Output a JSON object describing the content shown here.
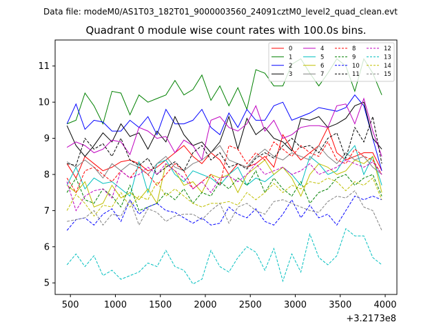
{
  "figure": {
    "suptitle": "Data file: modeM0/AS1T03_182T01_9000003560_24091cztM0_level2_quad_clean.evt"
  },
  "chart_data": {
    "type": "line",
    "title": "Quadrant 0 module wise count rates with 100.0s bins.",
    "xlabel": "",
    "ylabel": "",
    "x_offset_label": "+3.2173e8",
    "xlim": [
      330,
      4130
    ],
    "ylim": [
      4.68,
      11.72
    ],
    "xticks": [
      500,
      1000,
      1500,
      2000,
      2500,
      3000,
      3500,
      4000
    ],
    "yticks": [
      5,
      6,
      7,
      8,
      9,
      10,
      11
    ],
    "grid": false,
    "legend_placement": "top-right",
    "x": [
      462,
      562,
      662,
      762,
      862,
      962,
      1062,
      1162,
      1262,
      1362,
      1462,
      1562,
      1662,
      1762,
      1862,
      1962,
      2062,
      2162,
      2262,
      2362,
      2462,
      2562,
      2662,
      2762,
      2862,
      2962,
      3062,
      3162,
      3262,
      3362,
      3462,
      3562,
      3662,
      3762,
      3862,
      3962
    ],
    "series": [
      {
        "name": "0",
        "color": "#ff0000",
        "dash": "solid",
        "values": [
          8.3,
          7.9,
          8.5,
          8.3,
          8.1,
          8.2,
          8.35,
          8.4,
          8.3,
          8.1,
          8.2,
          8.4,
          8.6,
          8.8,
          8.5,
          8.3,
          8.6,
          8.4,
          8.0,
          8.3,
          8.2,
          8.3,
          8.5,
          8.2,
          9.1,
          8.7,
          8.4,
          8.6,
          8.8,
          9.3,
          8.6,
          8.4,
          8.5,
          8.6,
          8.6,
          8.1
        ]
      },
      {
        "name": "1",
        "color": "#008000",
        "dash": "solid",
        "values": [
          9.4,
          9.5,
          10.25,
          9.9,
          9.4,
          10.3,
          10.25,
          9.65,
          10.2,
          10.0,
          10.1,
          10.2,
          10.6,
          10.2,
          10.35,
          10.75,
          10.05,
          10.45,
          9.9,
          10.4,
          9.8,
          10.9,
          10.8,
          10.45,
          10.45,
          11.05,
          11.2,
          10.8,
          10.45,
          10.8,
          11.2,
          11.0,
          10.3,
          11.2,
          10.8,
          10.2
        ]
      },
      {
        "name": "2",
        "color": "#0000ff",
        "dash": "solid",
        "values": [
          9.4,
          9.95,
          9.25,
          9.5,
          9.45,
          9.2,
          9.2,
          9.5,
          9.3,
          9.6,
          9.1,
          9.8,
          9.4,
          9.4,
          9.5,
          9.8,
          9.3,
          9.1,
          9.7,
          9.3,
          9.8,
          9.5,
          9.5,
          9.9,
          10.0,
          9.5,
          9.6,
          9.7,
          9.85,
          9.8,
          9.75,
          9.85,
          10.2,
          9.9,
          9.0,
          8.1
        ]
      },
      {
        "name": "3",
        "color": "#000000",
        "dash": "solid",
        "values": [
          9.35,
          8.8,
          8.5,
          8.8,
          9.15,
          8.9,
          9.4,
          9.05,
          9.15,
          8.7,
          9.2,
          8.9,
          9.6,
          9.1,
          8.8,
          8.9,
          8.6,
          8.9,
          9.6,
          8.7,
          9.55,
          9.1,
          9.3,
          9.0,
          8.9,
          8.65,
          9.55,
          9.5,
          9.6,
          9.3,
          9.4,
          9.55,
          9.9,
          10.0,
          9.0,
          8.7
        ]
      },
      {
        "name": "4",
        "color": "#bf00bf",
        "dash": "solid",
        "values": [
          8.75,
          8.9,
          8.8,
          8.6,
          8.7,
          8.95,
          8.9,
          8.55,
          9.3,
          9.2,
          9.0,
          9.05,
          8.6,
          8.95,
          8.8,
          8.4,
          9.5,
          9.6,
          9.3,
          9.2,
          9.4,
          9.9,
          9.2,
          9.5,
          9.0,
          9.1,
          9.3,
          9.35,
          9.35,
          9.3,
          9.9,
          9.95,
          9.4,
          10.1,
          9.2,
          8.5
        ]
      },
      {
        "name": "5",
        "color": "#00bfbf",
        "dash": "solid",
        "values": [
          7.7,
          8.2,
          7.6,
          7.9,
          7.75,
          7.8,
          7.6,
          7.4,
          8.35,
          7.5,
          8.3,
          8.4,
          8.0,
          7.8,
          8.1,
          8.0,
          7.9,
          7.7,
          8.0,
          8.2,
          7.7,
          7.9,
          7.8,
          8.0,
          8.2,
          8.0,
          7.7,
          8.5,
          8.3,
          8.0,
          8.1,
          8.5,
          8.8,
          8.0,
          8.5,
          7.7
        ]
      },
      {
        "name": "6",
        "color": "#bfbf00",
        "dash": "solid",
        "values": [
          7.7,
          7.5,
          7.8,
          7.1,
          7.2,
          7.7,
          7.35,
          7.5,
          7.3,
          7.6,
          7.2,
          8.3,
          8.1,
          7.7,
          7.8,
          7.5,
          8.0,
          7.9,
          8.0,
          7.5,
          8.0,
          8.2,
          8.4,
          8.0,
          8.2,
          7.9,
          7.4,
          8.0,
          8.3,
          8.2,
          8.0,
          8.1,
          8.4,
          8.3,
          8.5,
          7.5
        ]
      },
      {
        "name": "7",
        "color": "#808080",
        "dash": "solid",
        "values": [
          8.35,
          8.2,
          8.4,
          8.2,
          7.9,
          8.3,
          8.1,
          8.3,
          8.2,
          8.0,
          8.3,
          8.5,
          8.2,
          8.1,
          8.3,
          8.4,
          8.6,
          8.8,
          8.4,
          8.3,
          8.2,
          8.5,
          8.7,
          8.5,
          8.4,
          8.6,
          8.5,
          8.4,
          8.8,
          8.5,
          8.3,
          8.6,
          8.4,
          8.5,
          8.2,
          8.0
        ]
      },
      {
        "name": "8",
        "color": "#ff0000",
        "dash": "dashed",
        "values": [
          7.9,
          7.5,
          8.1,
          8.2,
          8.0,
          7.8,
          8.1,
          7.9,
          8.2,
          8.0,
          7.7,
          8.0,
          8.3,
          8.1,
          7.6,
          7.8,
          8.0,
          7.7,
          8.8,
          8.7,
          8.3,
          8.6,
          8.4,
          8.9,
          8.7,
          8.5,
          8.8,
          8.6,
          8.5,
          8.9,
          8.4,
          8.3,
          8.7,
          8.5,
          8.4,
          8.0
        ]
      },
      {
        "name": "9",
        "color": "#008000",
        "dash": "dashed",
        "values": [
          7.5,
          7.9,
          7.3,
          7.2,
          7.6,
          7.4,
          7.1,
          7.7,
          7.0,
          7.1,
          7.2,
          7.5,
          7.3,
          7.6,
          7.2,
          7.5,
          7.4,
          7.8,
          7.6,
          7.9,
          7.7,
          8.1,
          7.5,
          7.9,
          7.6,
          7.4,
          7.8,
          7.2,
          7.5,
          7.6,
          7.9,
          8.0,
          7.7,
          7.9,
          8.0,
          7.4
        ]
      },
      {
        "name": "10",
        "color": "#0000ff",
        "dash": "dashed",
        "values": [
          6.45,
          6.75,
          6.8,
          6.6,
          6.9,
          7.05,
          6.7,
          7.3,
          6.9,
          7.1,
          7.2,
          7.0,
          6.95,
          6.8,
          6.65,
          6.8,
          6.6,
          6.65,
          7.1,
          6.9,
          6.8,
          7.05,
          6.7,
          6.6,
          6.9,
          7.3,
          6.8,
          7.15,
          6.8,
          6.9,
          6.6,
          7.0,
          7.4,
          7.3,
          7.4,
          7.3
        ]
      },
      {
        "name": "11",
        "color": "#000000",
        "dash": "dashed",
        "values": [
          8.3,
          8.25,
          9.0,
          8.7,
          8.85,
          8.5,
          9.0,
          8.4,
          8.25,
          8.45,
          8.0,
          8.2,
          8.35,
          8.1,
          8.6,
          8.8,
          8.4,
          8.6,
          8.2,
          8.3,
          8.15,
          8.45,
          8.6,
          8.45,
          8.8,
          9.0,
          8.75,
          8.8,
          8.6,
          9.0,
          9.15,
          8.45,
          9.3,
          8.9,
          9.6,
          8.3
        ]
      },
      {
        "name": "12",
        "color": "#bf00bf",
        "dash": "dashed",
        "values": [
          7.8,
          7.0,
          7.4,
          7.55,
          7.6,
          7.35,
          8.1,
          7.9,
          8.0,
          8.2,
          8.0,
          8.3,
          8.1,
          7.9,
          7.6,
          7.8,
          7.5,
          7.9,
          7.95,
          7.8,
          8.0,
          8.3,
          8.0,
          8.1,
          8.2,
          8.0,
          8.1,
          8.3,
          8.0,
          8.1,
          8.2,
          8.4,
          8.3,
          8.2,
          8.35,
          8.0
        ]
      },
      {
        "name": "13",
        "color": "#00bfbf",
        "dash": "dashed",
        "values": [
          5.5,
          5.8,
          5.45,
          5.75,
          5.2,
          5.35,
          5.1,
          5.2,
          5.3,
          5.55,
          5.45,
          5.9,
          5.45,
          5.35,
          4.97,
          5.1,
          5.9,
          5.45,
          5.3,
          5.7,
          6.0,
          5.85,
          5.35,
          5.95,
          5.05,
          5.8,
          5.3,
          6.35,
          5.7,
          5.5,
          5.75,
          6.5,
          6.3,
          6.3,
          5.7,
          5.5
        ]
      },
      {
        "name": "14",
        "color": "#bfbf00",
        "dash": "dashed",
        "values": [
          7.0,
          7.45,
          7.2,
          6.85,
          7.15,
          7.1,
          7.5,
          7.1,
          7.4,
          7.3,
          7.8,
          7.4,
          7.6,
          7.4,
          7.2,
          7.1,
          7.2,
          7.2,
          7.25,
          7.15,
          7.5,
          7.3,
          7.5,
          7.75,
          7.5,
          7.7,
          7.6,
          7.8,
          7.75,
          7.9,
          7.8,
          7.55,
          7.8,
          7.7,
          7.9,
          7.3
        ]
      },
      {
        "name": "15",
        "color": "#808080",
        "dash": "dashed",
        "values": [
          6.7,
          6.75,
          6.8,
          7.0,
          6.6,
          6.9,
          6.85,
          7.3,
          6.6,
          7.05,
          6.95,
          6.7,
          6.85,
          6.9,
          6.9,
          6.75,
          7.0,
          7.2,
          6.65,
          7.1,
          7.2,
          7.0,
          6.9,
          7.25,
          7.3,
          7.2,
          7.1,
          7.0,
          6.95,
          7.25,
          7.4,
          7.35,
          7.55,
          7.1,
          7.0,
          6.45
        ]
      }
    ]
  }
}
